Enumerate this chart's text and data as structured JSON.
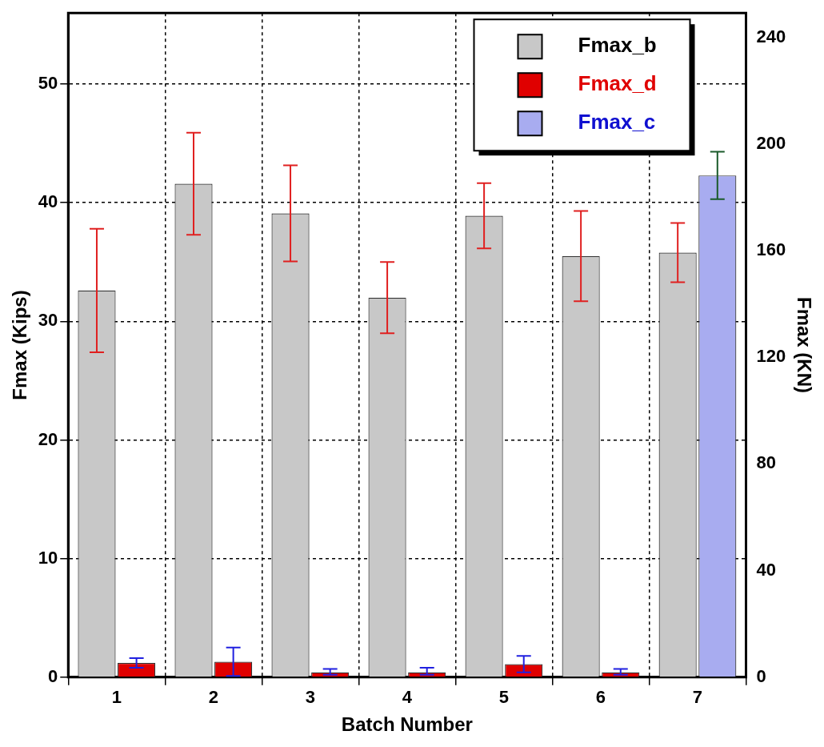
{
  "chart_data": {
    "type": "bar",
    "xlabel": "Batch Number",
    "ylabel": "Fmax (Kips)",
    "y2label": "Fmax (KN)",
    "categories": [
      "1",
      "2",
      "3",
      "4",
      "5",
      "6",
      "7"
    ],
    "series": [
      {
        "name": "Fmax_b",
        "color": "#c8c8c8",
        "values": [
          32.6,
          41.6,
          39.1,
          32.0,
          38.9,
          35.5,
          35.8
        ],
        "errors": [
          5.2,
          4.3,
          4.05,
          3.0,
          2.75,
          3.8,
          2.5
        ]
      },
      {
        "name": "Fmax_d",
        "color": "#e00000",
        "values": [
          1.2,
          1.3,
          0.4,
          0.4,
          1.1,
          0.4,
          null
        ],
        "errors": [
          0.4,
          1.2,
          [
            0.2,
            0.7
          ],
          [
            0.2,
            0.8
          ],
          0.7,
          [
            0.2,
            0.7
          ],
          null
        ]
      },
      {
        "name": "Fmax_c",
        "color": "#a8acf0",
        "values": [
          null,
          null,
          null,
          null,
          null,
          null,
          42.3
        ],
        "errors": [
          null,
          null,
          null,
          null,
          null,
          null,
          2.0
        ]
      }
    ],
    "ylim": [
      0,
      56
    ],
    "yticks": [
      0,
      10,
      20,
      30,
      40,
      50
    ],
    "y2lim": [
      0,
      249.1
    ],
    "y2ticks": [
      0,
      40,
      80,
      120,
      160,
      200,
      240
    ],
    "grid": true,
    "legend": "top right"
  }
}
